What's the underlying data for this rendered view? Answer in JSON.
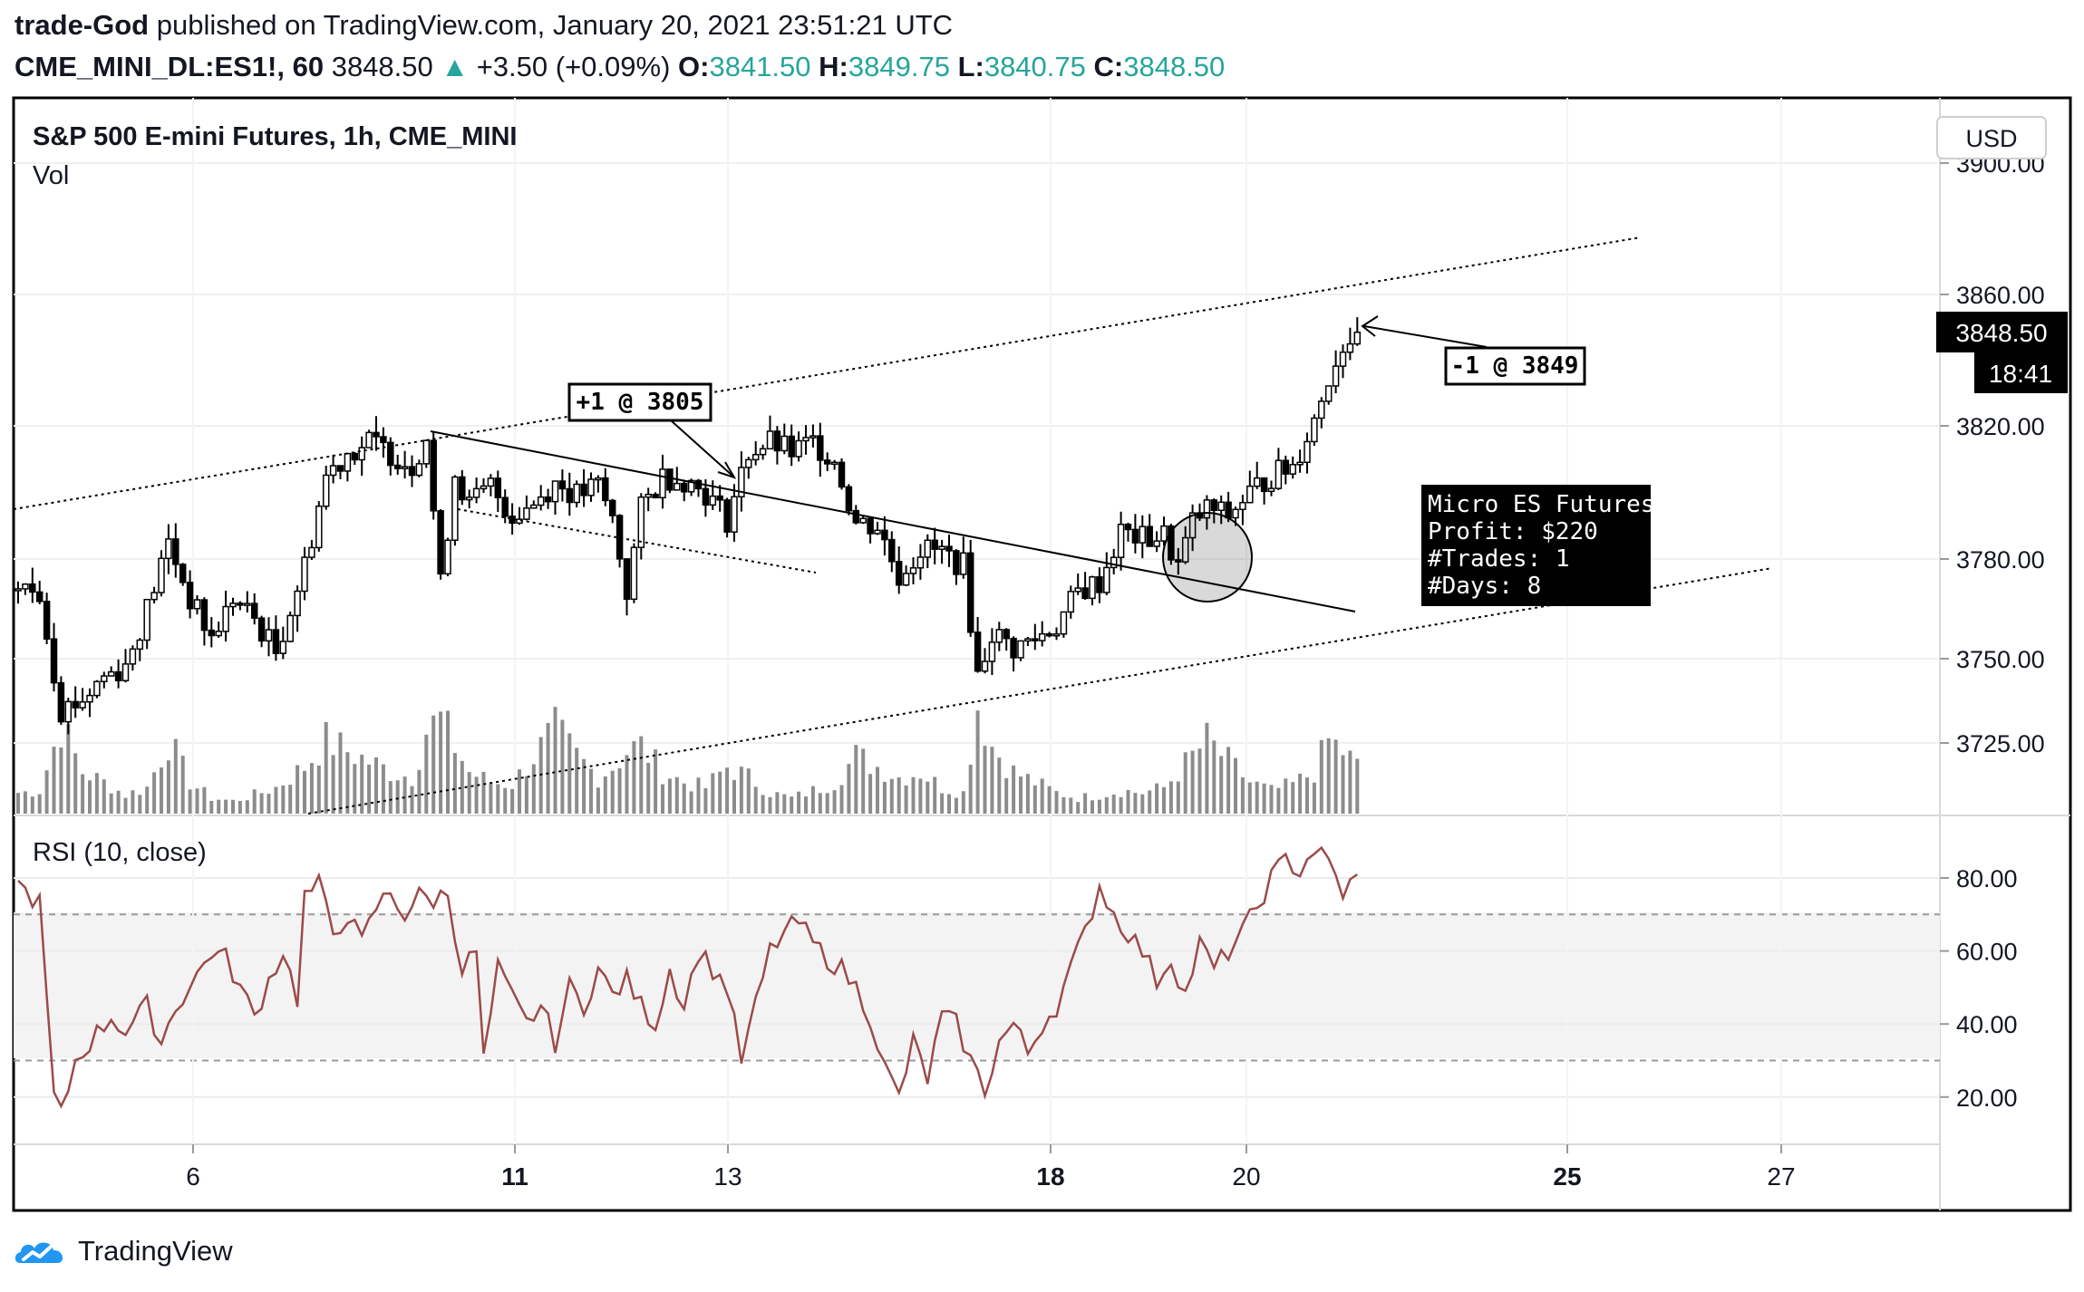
{
  "header": {
    "author": "trade-God",
    "published_text": "published on TradingView.com, January 20, 2021 23:51:21 UTC",
    "symbol": "CME_MINI_DL:ES1!, 60",
    "last": "3848.50",
    "change": "+3.50 (+0.09%)",
    "o_label": "O:",
    "o": "3841.50",
    "h_label": "H:",
    "h": "3849.75",
    "l_label": "L:",
    "l": "3840.75",
    "c_label": "C:",
    "c": "3848.50"
  },
  "footer": {
    "brand": "TradingView"
  },
  "colors": {
    "teal": "#26a69a",
    "rsi_line": "#9c4a4a",
    "candle": "#000000",
    "volume": "#8c8c8c"
  },
  "chart_data": [
    {
      "type": "candlestick",
      "title": "S&P 500 E-mini Futures, 1h, CME_MINI",
      "indicator_label": "Vol",
      "currency": "USD",
      "y_ticks": [
        "3900.00",
        "3860.00",
        "3820.00",
        "3780.00",
        "3750.00",
        "3725.00"
      ],
      "x_ticks": [
        {
          "label": "6",
          "bold": false
        },
        {
          "label": "11",
          "bold": true
        },
        {
          "label": "13",
          "bold": false
        },
        {
          "label": "18",
          "bold": true
        },
        {
          "label": "20",
          "bold": false
        },
        {
          "label": "25",
          "bold": true
        },
        {
          "label": "27",
          "bold": false
        }
      ],
      "last_price_label": "3848.50",
      "countdown_label": "18:41",
      "approx_close_path": [
        [
          0,
          3771
        ],
        [
          3,
          3770
        ],
        [
          6,
          3735
        ],
        [
          9,
          3738
        ],
        [
          12,
          3745
        ],
        [
          15,
          3748
        ],
        [
          18,
          3765
        ],
        [
          21,
          3785
        ],
        [
          24,
          3768
        ],
        [
          27,
          3756
        ],
        [
          30,
          3768
        ],
        [
          33,
          3762
        ],
        [
          36,
          3752
        ],
        [
          40,
          3778
        ],
        [
          43,
          3805
        ],
        [
          46,
          3812
        ],
        [
          49,
          3815
        ],
        [
          52,
          3812
        ],
        [
          55,
          3808
        ],
        [
          57,
          3817
        ],
        [
          59,
          3772
        ],
        [
          61,
          3806
        ],
        [
          63,
          3796
        ],
        [
          66,
          3802
        ],
        [
          69,
          3793
        ],
        [
          72,
          3797
        ],
        [
          75,
          3803
        ],
        [
          78,
          3799
        ],
        [
          81,
          3802
        ],
        [
          83,
          3792
        ],
        [
          85,
          3770
        ],
        [
          87,
          3795
        ],
        [
          90,
          3805
        ],
        [
          93,
          3804
        ],
        [
          96,
          3800
        ],
        [
          99,
          3792
        ],
        [
          102,
          3812
        ],
        [
          105,
          3815
        ],
        [
          108,
          3812
        ],
        [
          111,
          3815
        ],
        [
          114,
          3810
        ],
        [
          117,
          3791
        ],
        [
          120,
          3790
        ],
        [
          123,
          3775
        ],
        [
          126,
          3783
        ],
        [
          129,
          3782
        ],
        [
          132,
          3778
        ],
        [
          134,
          3745
        ],
        [
          136,
          3758
        ],
        [
          139,
          3753
        ],
        [
          142,
          3756
        ],
        [
          145,
          3760
        ],
        [
          148,
          3770
        ],
        [
          151,
          3773
        ],
        [
          154,
          3788
        ],
        [
          157,
          3786
        ],
        [
          160,
          3787
        ],
        [
          162,
          3778
        ],
        [
          164,
          3791
        ],
        [
          166,
          3795
        ],
        [
          169,
          3793
        ],
        [
          172,
          3800
        ],
        [
          175,
          3805
        ],
        [
          178,
          3808
        ],
        [
          181,
          3822
        ],
        [
          183,
          3835
        ],
        [
          185,
          3845
        ],
        [
          187,
          3848.5
        ]
      ],
      "volume_path": [
        [
          0,
          20
        ],
        [
          3,
          22
        ],
        [
          6,
          85
        ],
        [
          9,
          40
        ],
        [
          12,
          30
        ],
        [
          15,
          18
        ],
        [
          18,
          25
        ],
        [
          21,
          70
        ],
        [
          24,
          30
        ],
        [
          27,
          15
        ],
        [
          30,
          12
        ],
        [
          33,
          18
        ],
        [
          36,
          25
        ],
        [
          40,
          45
        ],
        [
          43,
          70
        ],
        [
          46,
          60
        ],
        [
          49,
          50
        ],
        [
          52,
          40
        ],
        [
          55,
          35
        ],
        [
          57,
          80
        ],
        [
          59,
          90
        ],
        [
          61,
          65
        ],
        [
          63,
          40
        ],
        [
          66,
          30
        ],
        [
          69,
          28
        ],
        [
          72,
          55
        ],
        [
          75,
          80
        ],
        [
          78,
          55
        ],
        [
          81,
          35
        ],
        [
          83,
          45
        ],
        [
          85,
          60
        ],
        [
          87,
          65
        ],
        [
          90,
          40
        ],
        [
          93,
          30
        ],
        [
          96,
          25
        ],
        [
          99,
          45
        ],
        [
          102,
          35
        ],
        [
          105,
          20
        ],
        [
          108,
          15
        ],
        [
          111,
          22
        ],
        [
          114,
          30
        ],
        [
          117,
          55
        ],
        [
          120,
          45
        ],
        [
          123,
          35
        ],
        [
          126,
          40
        ],
        [
          129,
          25
        ],
        [
          132,
          20
        ],
        [
          134,
          105
        ],
        [
          136,
          65
        ],
        [
          139,
          40
        ],
        [
          142,
          30
        ],
        [
          145,
          20
        ],
        [
          148,
          15
        ],
        [
          151,
          18
        ],
        [
          154,
          22
        ],
        [
          157,
          20
        ],
        [
          160,
          25
        ],
        [
          162,
          40
        ],
        [
          164,
          55
        ],
        [
          166,
          70
        ],
        [
          169,
          50
        ],
        [
          172,
          30
        ],
        [
          175,
          22
        ],
        [
          178,
          28
        ],
        [
          181,
          40
        ],
        [
          183,
          70
        ],
        [
          185,
          60
        ],
        [
          187,
          45
        ]
      ],
      "annotations": [
        {
          "text": "+1 @ 3805"
        },
        {
          "text": "-1 @ 3849"
        },
        {
          "lines": [
            "Micro ES Futures",
            "Profit: $220",
            "#Trades: 1",
            "#Days: 8"
          ]
        }
      ]
    },
    {
      "type": "line",
      "title": "RSI (10, close)",
      "y_ticks": [
        "80.00",
        "60.00",
        "40.00",
        "20.00"
      ],
      "bands": [
        30,
        70
      ],
      "ylim": [
        8,
        92
      ],
      "approx_values": [
        [
          0,
          78
        ],
        [
          3,
          73
        ],
        [
          5,
          20
        ],
        [
          6,
          15
        ],
        [
          8,
          30
        ],
        [
          10,
          35
        ],
        [
          13,
          42
        ],
        [
          15,
          38
        ],
        [
          18,
          45
        ],
        [
          20,
          35
        ],
        [
          22,
          45
        ],
        [
          24,
          50
        ],
        [
          27,
          60
        ],
        [
          29,
          58
        ],
        [
          31,
          50
        ],
        [
          33,
          42
        ],
        [
          35,
          52
        ],
        [
          37,
          60
        ],
        [
          39,
          47
        ],
        [
          40,
          75
        ],
        [
          42,
          78
        ],
        [
          44,
          65
        ],
        [
          46,
          70
        ],
        [
          48,
          62
        ],
        [
          50,
          72
        ],
        [
          52,
          76
        ],
        [
          54,
          70
        ],
        [
          56,
          75
        ],
        [
          58,
          74
        ],
        [
          60,
          76
        ],
        [
          62,
          55
        ],
        [
          64,
          60
        ],
        [
          65,
          30
        ],
        [
          67,
          55
        ],
        [
          69,
          47
        ],
        [
          71,
          40
        ],
        [
          73,
          45
        ],
        [
          75,
          35
        ],
        [
          77,
          50
        ],
        [
          79,
          45
        ],
        [
          81,
          55
        ],
        [
          83,
          48
        ],
        [
          85,
          52
        ],
        [
          87,
          45
        ],
        [
          89,
          40
        ],
        [
          91,
          55
        ],
        [
          93,
          45
        ],
        [
          95,
          60
        ],
        [
          97,
          55
        ],
        [
          99,
          50
        ],
        [
          101,
          30
        ],
        [
          103,
          45
        ],
        [
          105,
          60
        ],
        [
          107,
          65
        ],
        [
          109,
          68
        ],
        [
          111,
          62
        ],
        [
          113,
          58
        ],
        [
          115,
          55
        ],
        [
          117,
          50
        ],
        [
          119,
          42
        ],
        [
          121,
          28
        ],
        [
          123,
          20
        ],
        [
          125,
          35
        ],
        [
          127,
          25
        ],
        [
          129,
          42
        ],
        [
          131,
          40
        ],
        [
          133,
          30
        ],
        [
          135,
          22
        ],
        [
          137,
          35
        ],
        [
          139,
          40
        ],
        [
          141,
          32
        ],
        [
          143,
          40
        ],
        [
          145,
          45
        ],
        [
          147,
          55
        ],
        [
          149,
          65
        ],
        [
          151,
          78
        ],
        [
          153,
          70
        ],
        [
          155,
          65
        ],
        [
          157,
          60
        ],
        [
          159,
          52
        ],
        [
          161,
          58
        ],
        [
          163,
          48
        ],
        [
          165,
          62
        ],
        [
          167,
          55
        ],
        [
          169,
          60
        ],
        [
          171,
          65
        ],
        [
          173,
          72
        ],
        [
          175,
          80
        ],
        [
          177,
          85
        ],
        [
          179,
          82
        ],
        [
          181,
          88
        ],
        [
          183,
          84
        ],
        [
          185,
          76
        ],
        [
          187,
          80
        ]
      ]
    }
  ]
}
